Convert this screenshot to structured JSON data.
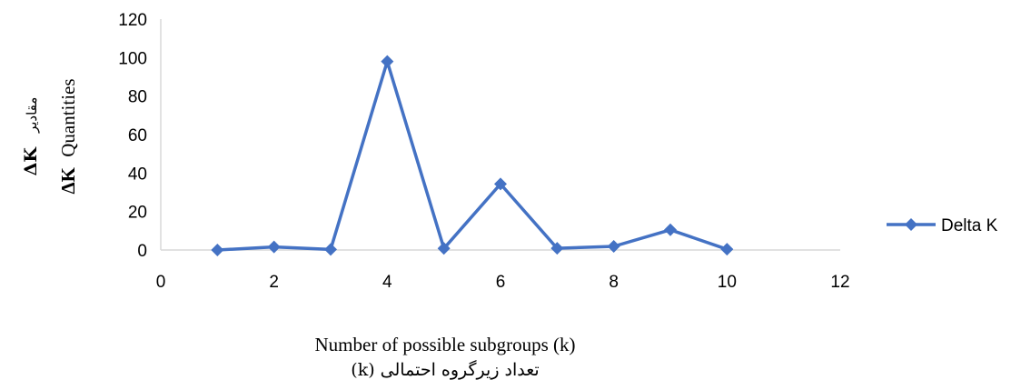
{
  "chart_data": {
    "type": "line",
    "title": "",
    "xlabel": "Number of possible subgroups (k)",
    "xlabel_fa": "تعداد زیرگروه احتمالی (k)",
    "ylabel": {
      "symbol_line1": "ΔK",
      "text_line1": "مقادیر",
      "symbol_line2": "ΔK",
      "text_line2": "Quantities"
    },
    "xlim": [
      0,
      12
    ],
    "ylim": [
      0,
      120
    ],
    "x_ticks": [
      0,
      2,
      4,
      6,
      8,
      10,
      12
    ],
    "y_ticks": [
      0,
      20,
      40,
      60,
      80,
      100,
      120
    ],
    "grid": false,
    "legend_position": "right",
    "series": [
      {
        "name": "Delta K",
        "color": "#4472C4",
        "marker": "diamond",
        "x": [
          1,
          2,
          3,
          4,
          5,
          6,
          7,
          8,
          9,
          10
        ],
        "y": [
          0,
          1.6,
          0.3,
          98,
          0.8,
          34.3,
          0.9,
          1.9,
          10.5,
          0.4
        ]
      }
    ]
  }
}
